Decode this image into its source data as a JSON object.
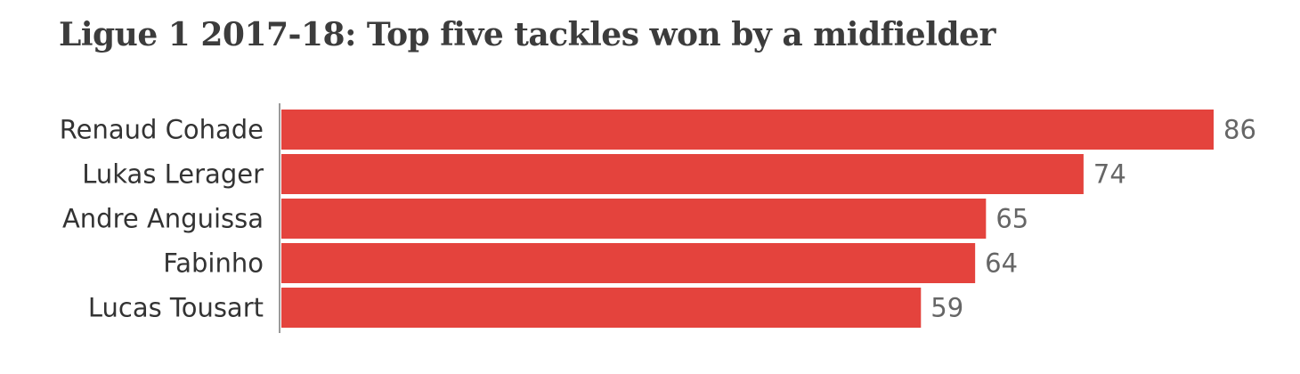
{
  "chart_data": {
    "type": "bar",
    "orientation": "horizontal",
    "title": "Ligue 1 2017-18: Top five tackles won by a midfielder",
    "categories": [
      "Renaud Cohade",
      "Lukas Lerager",
      "Andre Anguissa",
      "Fabinho",
      "Lucas Tousart"
    ],
    "values": [
      86,
      74,
      65,
      64,
      59
    ],
    "data_labels": [
      "86",
      "74",
      "65",
      "64",
      "59"
    ],
    "xlim": [
      0,
      86
    ],
    "grid": false,
    "legend": "none",
    "bar_color": "#e4433d"
  }
}
